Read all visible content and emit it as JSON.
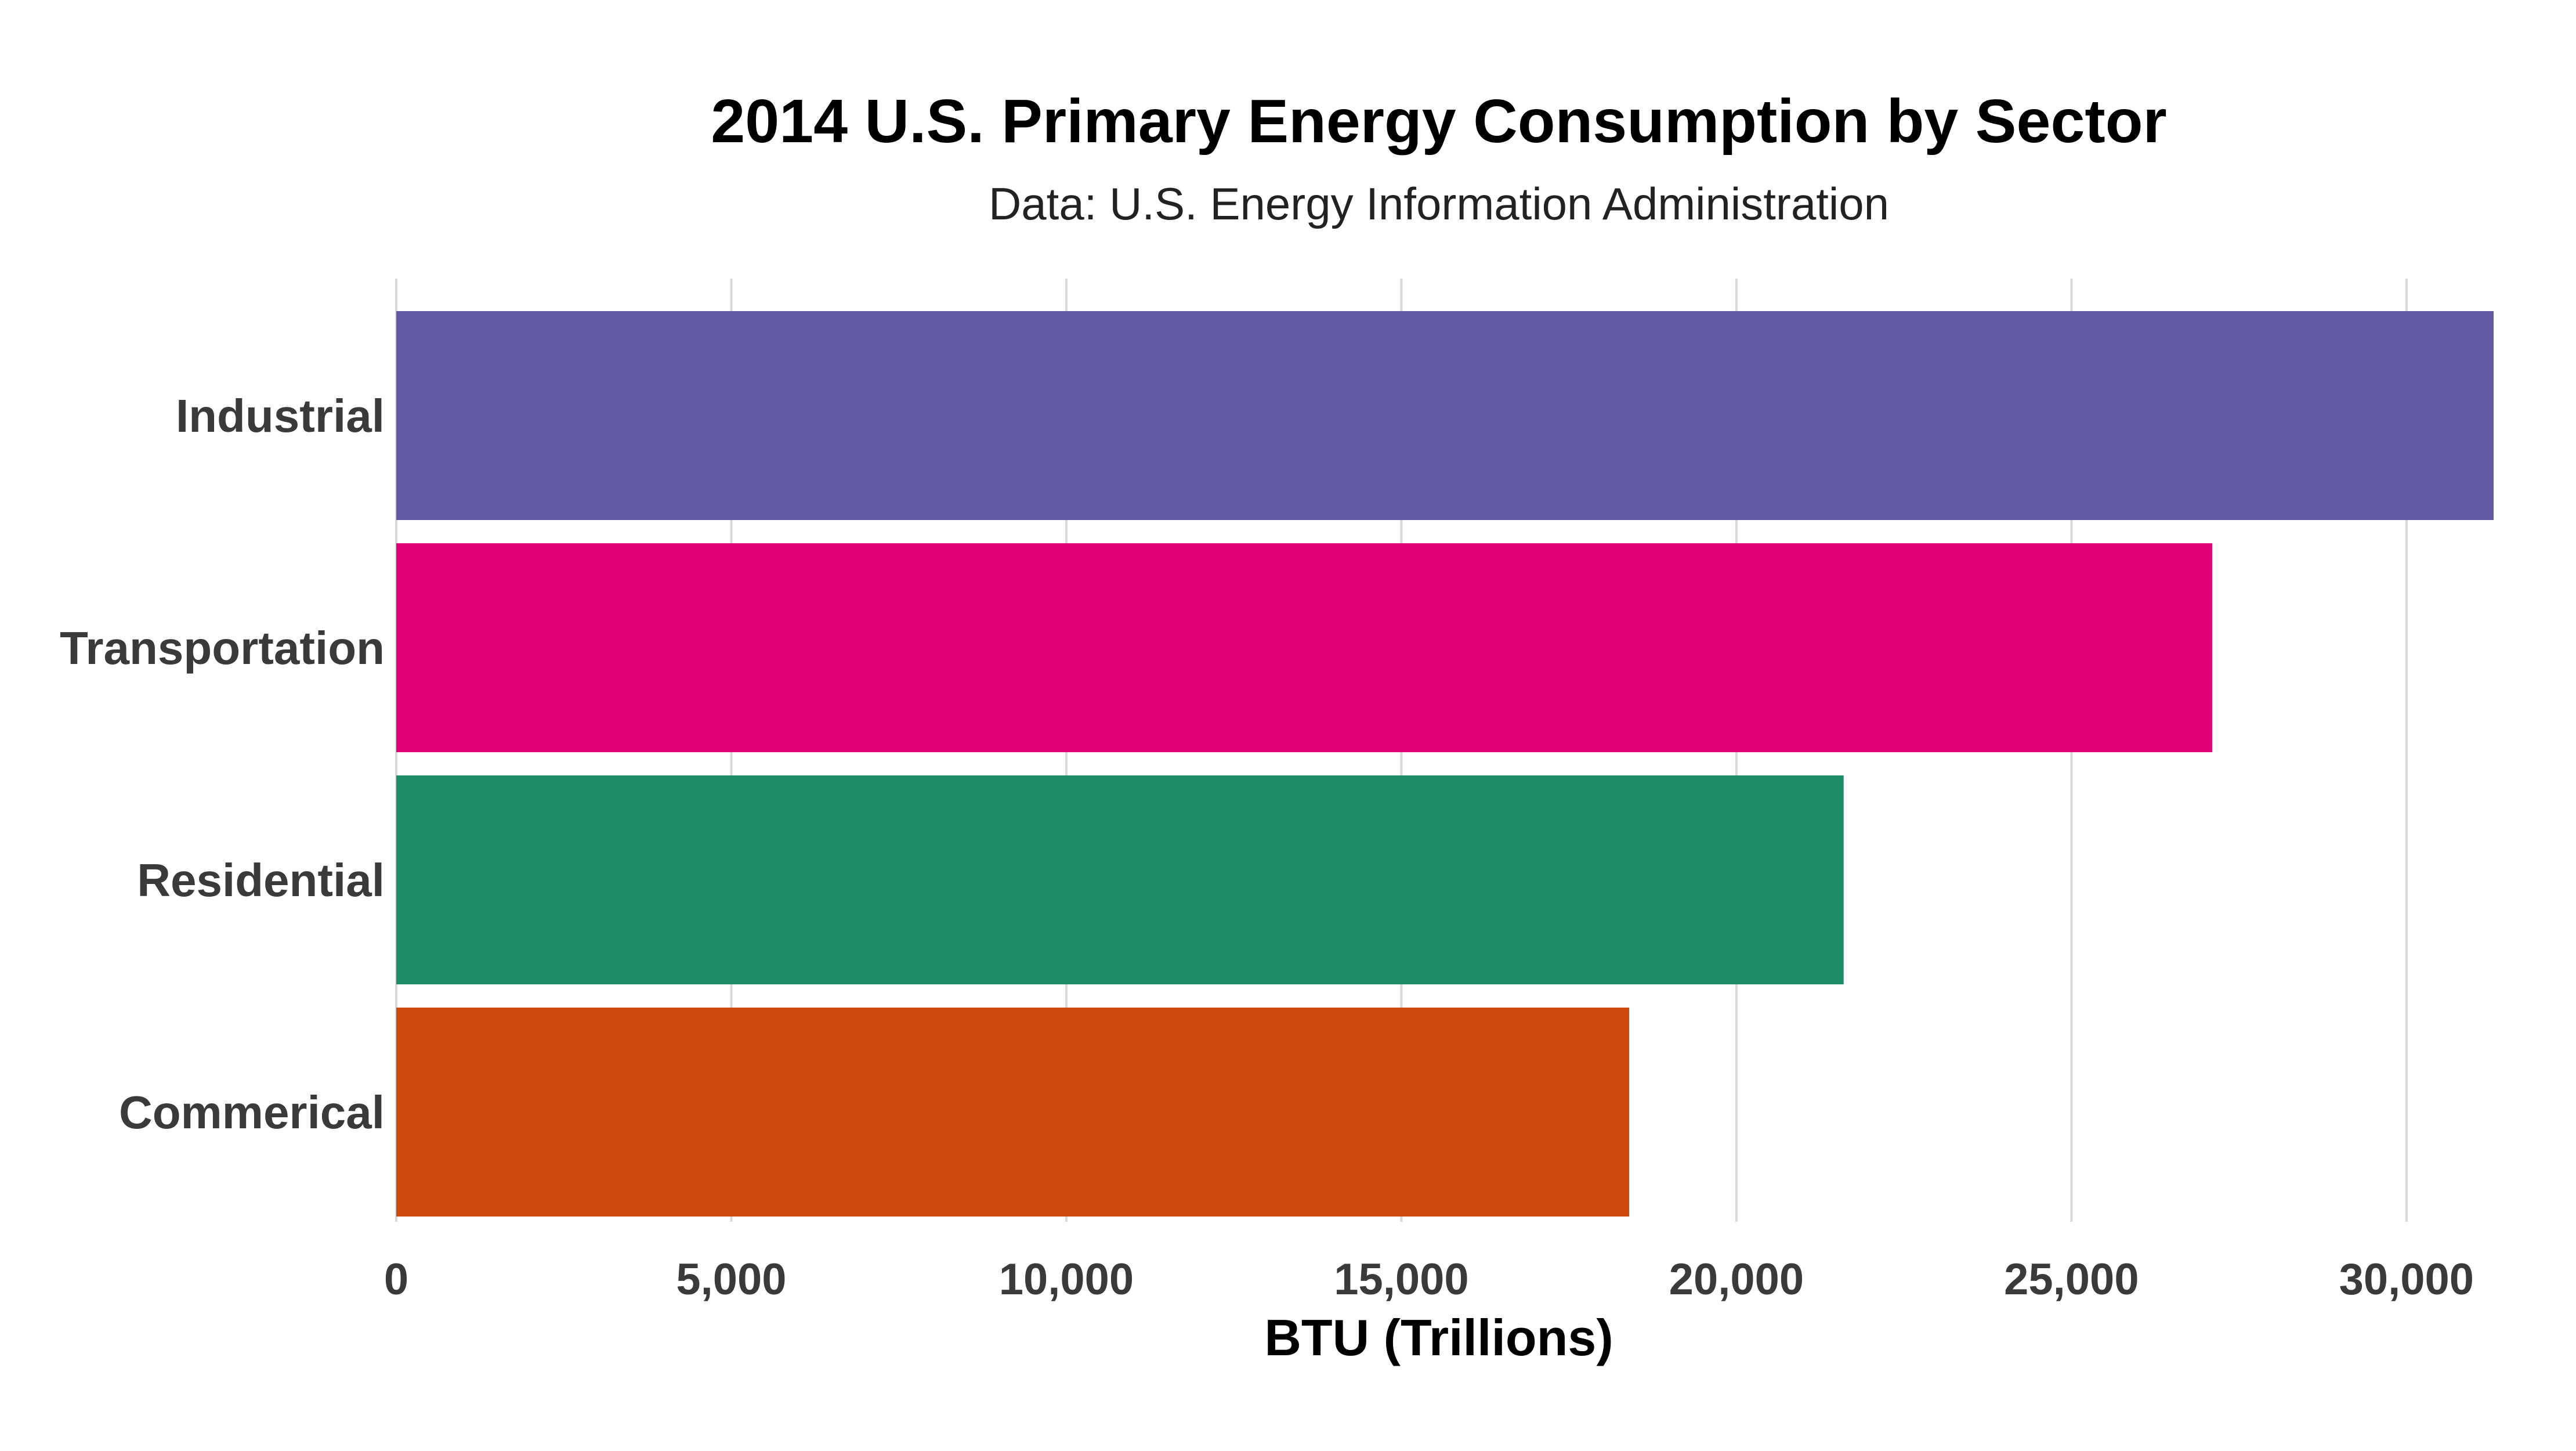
{
  "chart_data": {
    "type": "bar",
    "orientation": "horizontal",
    "title": "2014 U.S. Primary Energy Consumption by Sector",
    "subtitle": "Data: U.S. Energy Information Administration",
    "xlabel": "BTU (Trillions)",
    "ylabel": "",
    "categories": [
      "Industrial",
      "Transportation",
      "Residential",
      "Commerical"
    ],
    "values": [
      31300,
      27100,
      21600,
      18400
    ],
    "colors": [
      "#6159a3",
      "#dd0077",
      "#1e8e68",
      "#cc4b0c"
    ],
    "xlim": [
      0,
      31300
    ],
    "x_ticks": [
      0,
      5000,
      10000,
      15000,
      20000,
      25000,
      30000
    ],
    "x_tick_labels": [
      "0",
      "5,000",
      "10,000",
      "15,000",
      "20,000",
      "25,000",
      "30,000"
    ],
    "grid": "vertical",
    "legend": "none"
  }
}
